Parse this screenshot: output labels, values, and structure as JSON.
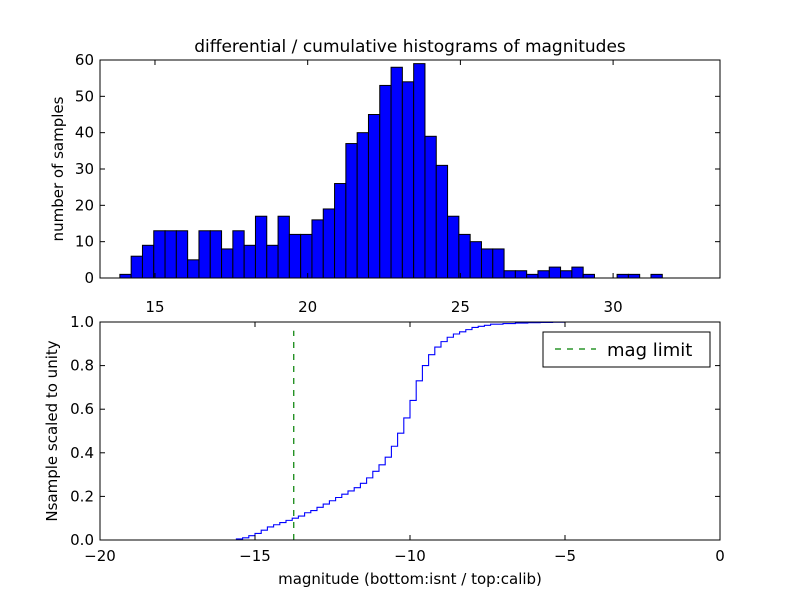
{
  "chart_data": [
    {
      "type": "bar",
      "title": "differential / cumulative histograms of magnitudes",
      "xlabel": "",
      "ylabel": "number of samples",
      "xlim": [
        13.2,
        33.5
      ],
      "ylim": [
        0,
        60
      ],
      "xticks": [
        15,
        20,
        25,
        30
      ],
      "yticks": [
        0,
        10,
        20,
        30,
        40,
        50,
        60
      ],
      "bin_start": 13.85,
      "bin_width": 0.37,
      "values": [
        1,
        6,
        9,
        13,
        13,
        13,
        5,
        13,
        13,
        8,
        13,
        9,
        17,
        9,
        17,
        12,
        12,
        16,
        19,
        26,
        37,
        40,
        45,
        53,
        58,
        54,
        59,
        39,
        31,
        17,
        12,
        10,
        8,
        8,
        2,
        2,
        1,
        2,
        3,
        2,
        3,
        1,
        0,
        0,
        1,
        1,
        0,
        1,
        0,
        0,
        0,
        0,
        0,
        0
      ],
      "bar_color": "#0000ff"
    },
    {
      "type": "line",
      "xlabel": "magnitude (bottom:isnt / top:calib)",
      "ylabel": "Nsample scaled to unity",
      "xlim": [
        -20,
        0
      ],
      "ylim": [
        0.0,
        1.0
      ],
      "xticks": [
        -20,
        -15,
        -10,
        -5,
        0
      ],
      "xtick_labels": [
        "−20",
        "−15",
        "−10",
        "−5",
        "0"
      ],
      "yticks": [
        0.0,
        0.2,
        0.4,
        0.6,
        0.8,
        1.0
      ],
      "ytick_labels": [
        "0.0",
        "0.2",
        "0.4",
        "0.6",
        "0.8",
        "1.0"
      ],
      "series": [
        {
          "name": "cumulative",
          "style": "step",
          "color": "#0000ff",
          "x": [
            -20.0,
            -15.6,
            -15.4,
            -15.2,
            -15.0,
            -14.8,
            -14.6,
            -14.4,
            -14.2,
            -14.0,
            -13.8,
            -13.6,
            -13.4,
            -13.2,
            -13.0,
            -12.8,
            -12.6,
            -12.4,
            -12.2,
            -12.0,
            -11.8,
            -11.6,
            -11.4,
            -11.2,
            -11.0,
            -10.8,
            -10.6,
            -10.4,
            -10.2,
            -10.0,
            -9.8,
            -9.6,
            -9.4,
            -9.2,
            -9.0,
            -8.8,
            -8.6,
            -8.4,
            -8.2,
            -8.0,
            -7.8,
            -7.6,
            -7.4,
            -7.0,
            -6.6,
            -6.2,
            -5.8,
            -5.4,
            -5.0,
            -4.6,
            -0.05,
            0.0
          ],
          "y": [
            0.0,
            0.005,
            0.01,
            0.02,
            0.03,
            0.045,
            0.06,
            0.07,
            0.08,
            0.09,
            0.1,
            0.11,
            0.125,
            0.135,
            0.15,
            0.165,
            0.18,
            0.195,
            0.21,
            0.225,
            0.24,
            0.26,
            0.285,
            0.315,
            0.345,
            0.38,
            0.43,
            0.49,
            0.56,
            0.64,
            0.73,
            0.8,
            0.85,
            0.885,
            0.91,
            0.93,
            0.945,
            0.955,
            0.965,
            0.975,
            0.98,
            0.985,
            0.99,
            0.993,
            0.995,
            0.997,
            0.998,
            0.999,
            1.0,
            1.0,
            1.0,
            1.0
          ]
        },
        {
          "name": "mag limit",
          "style": "dashed-vertical",
          "color": "#008000",
          "x_value": -13.75,
          "y_range": [
            0.0,
            0.96
          ]
        }
      ],
      "legend": {
        "label": "mag limit",
        "placement": "top-right"
      }
    }
  ]
}
